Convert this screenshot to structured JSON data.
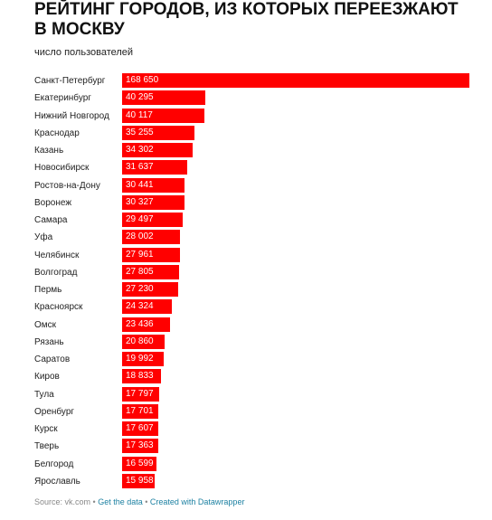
{
  "title": "РЕЙТИНГ ГОРОДОВ, ИЗ КОТОРЫХ ПЕРЕЕЗЖАЮТ В МОСКВУ",
  "subtitle": "число пользователей",
  "colors": {
    "bar": "#ff0000",
    "value_text": "#ffffff",
    "link": "#1d81a2"
  },
  "chart_data": {
    "type": "bar",
    "orientation": "horizontal",
    "categories": [
      "Санкт-Петербург",
      "Екатеринбург",
      "Нижний Новгород",
      "Краснодар",
      "Казань",
      "Новосибирск",
      "Ростов-на-Дону",
      "Воронеж",
      "Самара",
      "Уфа",
      "Челябинск",
      "Волгоград",
      "Пермь",
      "Красноярск",
      "Омск",
      "Рязань",
      "Саратов",
      "Киров",
      "Тула",
      "Оренбург",
      "Курск",
      "Тверь",
      "Белгород",
      "Ярославль"
    ],
    "values": [
      168650,
      40295,
      40117,
      35255,
      34302,
      31637,
      30441,
      30327,
      29497,
      28002,
      27961,
      27805,
      27230,
      24324,
      23436,
      20860,
      19992,
      18833,
      17797,
      17701,
      17607,
      17363,
      16599,
      15958
    ],
    "value_labels": [
      "168 650",
      "40 295",
      "40 117",
      "35 255",
      "34 302",
      "31 637",
      "30 441",
      "30 327",
      "29 497",
      "28 002",
      "27 961",
      "27 805",
      "27 230",
      "24 324",
      "23 436",
      "20 860",
      "19 992",
      "18 833",
      "17 797",
      "17 701",
      "17 607",
      "17 363",
      "16 599",
      "15 958"
    ],
    "xlim": [
      0,
      168650
    ],
    "grid": false
  },
  "footer": {
    "source": "Source: vk.com",
    "sep1": " • ",
    "get_data": "Get the data",
    "sep2": " • ",
    "created": "Created with Datawrapper"
  }
}
